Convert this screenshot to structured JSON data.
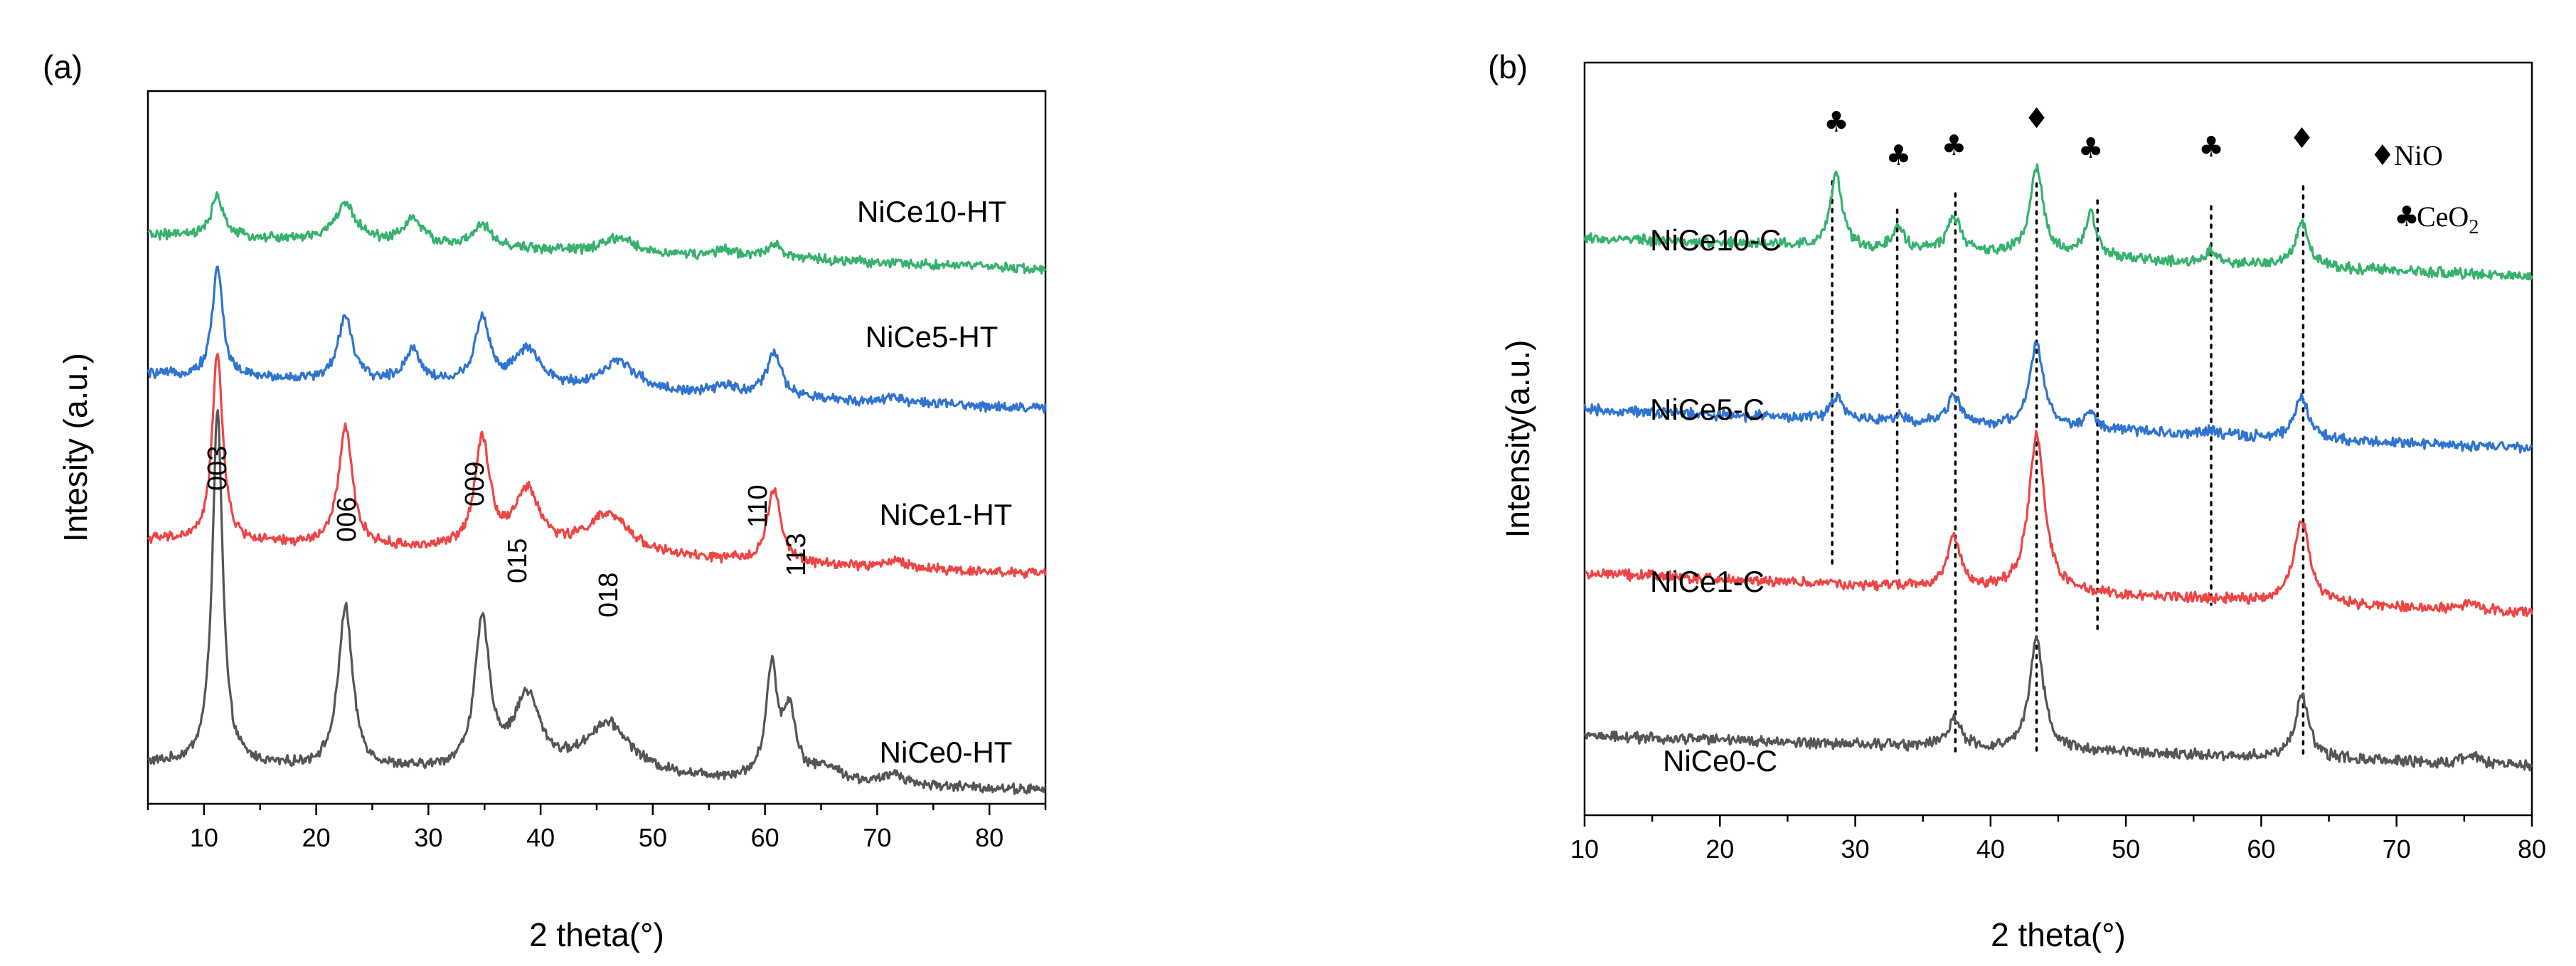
{
  "figure": {
    "panels": [
      {
        "label": "(a)"
      },
      {
        "label": "(b)"
      }
    ]
  },
  "chart_data": [
    {
      "id": "a",
      "type": "line",
      "title": "",
      "xlabel": "2 theta(°)",
      "ylabel": "Intesity (a.u.)",
      "xlim": [
        5,
        85
      ],
      "ylim": [
        0,
        9
      ],
      "xticks": [
        10,
        20,
        30,
        40,
        50,
        60,
        70,
        80
      ],
      "yticks_hidden": true,
      "series": [
        {
          "name": "NiCe0-HT",
          "color": "#555555",
          "baseline": 0.35,
          "peaks": [
            [
              11.2,
              4.8,
              0.55
            ],
            [
              22.6,
              2.2,
              0.75
            ],
            [
              34.8,
              2.0,
              0.8
            ],
            [
              38.8,
              1.0,
              1.4
            ],
            [
              46.0,
              0.7,
              2.5
            ],
            [
              60.6,
              1.5,
              0.6
            ],
            [
              62.2,
              0.9,
              0.7
            ],
            [
              65.5,
              0.2,
              1.5
            ],
            [
              71.6,
              0.15,
              1.0
            ]
          ]
        },
        {
          "name": "NiCe1-HT",
          "color": "#ef4444",
          "baseline": 3.4,
          "peaks": [
            [
              11.2,
              2.6,
              0.55
            ],
            [
              22.6,
              1.6,
              0.75
            ],
            [
              34.8,
              1.5,
              0.8
            ],
            [
              38.8,
              0.8,
              1.4
            ],
            [
              46.0,
              0.55,
              2.5
            ],
            [
              60.8,
              1.0,
              0.7
            ],
            [
              71.6,
              0.1,
              1.0
            ]
          ]
        },
        {
          "name": "NiCe5-HT",
          "color": "#2f74d0",
          "baseline": 5.65,
          "peaks": [
            [
              11.2,
              1.5,
              0.55
            ],
            [
              22.6,
              0.9,
              0.75
            ],
            [
              28.6,
              0.45,
              0.9
            ],
            [
              34.8,
              0.9,
              0.8
            ],
            [
              38.8,
              0.5,
              1.4
            ],
            [
              47.0,
              0.4,
              2.0
            ],
            [
              56.5,
              0.12,
              1.3
            ],
            [
              60.8,
              0.6,
              0.8
            ],
            [
              71.6,
              0.08,
              1.0
            ]
          ]
        },
        {
          "name": "NiCe10-HT",
          "color": "#36b26e",
          "baseline": 7.55,
          "peaks": [
            [
              11.2,
              0.55,
              0.65
            ],
            [
              22.6,
              0.5,
              1.2
            ],
            [
              28.6,
              0.35,
              1.0
            ],
            [
              34.8,
              0.3,
              0.9
            ],
            [
              47.0,
              0.2,
              1.5
            ],
            [
              56.5,
              0.08,
              1.0
            ],
            [
              60.8,
              0.2,
              0.9
            ]
          ]
        }
      ],
      "peak_labels": [
        "003",
        "006",
        "009",
        "015",
        "018",
        "110",
        "113"
      ]
    },
    {
      "id": "b",
      "type": "line",
      "title": "",
      "xlabel": "2 theta(°)",
      "ylabel": "Intensity(a.u.)",
      "xlim": [
        10,
        80
      ],
      "ylim": [
        0,
        9
      ],
      "xticks": [
        10,
        20,
        30,
        40,
        50,
        60,
        70,
        80
      ],
      "yticks_hidden": true,
      "series": [
        {
          "name": "NiCe0-C",
          "color": "#555555",
          "baseline": 0.78,
          "peaks": [
            [
              37.3,
              0.35,
              0.6
            ],
            [
              43.4,
              1.45,
              0.6
            ],
            [
              63.0,
              0.8,
              0.6
            ],
            [
              75.5,
              0.1,
              0.8
            ]
          ]
        },
        {
          "name": "NiCe1-C",
          "color": "#ef4444",
          "baseline": 2.85,
          "peaks": [
            [
              37.3,
              0.65,
              0.6
            ],
            [
              43.4,
              2.0,
              0.7
            ],
            [
              63.0,
              1.05,
              0.7
            ],
            [
              75.5,
              0.1,
              0.8
            ]
          ]
        },
        {
          "name": "NiCe5-C",
          "color": "#2f74d0",
          "baseline": 4.95,
          "peaks": [
            [
              28.6,
              0.3,
              0.5
            ],
            [
              33.2,
              0.08,
              0.5
            ],
            [
              37.3,
              0.35,
              0.6
            ],
            [
              43.4,
              1.1,
              0.6
            ],
            [
              47.4,
              0.2,
              0.5
            ],
            [
              56.3,
              0.06,
              0.5
            ],
            [
              63.0,
              0.55,
              0.6
            ]
          ]
        },
        {
          "name": "NiCe10-C",
          "color": "#36b26e",
          "baseline": 7.15,
          "peaks": [
            [
              28.6,
              0.95,
              0.5
            ],
            [
              33.2,
              0.3,
              0.5
            ],
            [
              37.3,
              0.45,
              0.6
            ],
            [
              43.4,
              1.1,
              0.6
            ],
            [
              47.4,
              0.55,
              0.5
            ],
            [
              56.3,
              0.15,
              0.5
            ],
            [
              63.0,
              0.55,
              0.6
            ]
          ]
        }
      ],
      "reference_lines": [
        28.3,
        33.1,
        37.4,
        43.4,
        47.9,
        56.3,
        63.1
      ],
      "peak_markers": [
        {
          "x": 28.6,
          "symbol": "♣"
        },
        {
          "x": 33.2,
          "symbol": "♣"
        },
        {
          "x": 37.3,
          "symbol": "♣"
        },
        {
          "x": 43.4,
          "symbol": "♦"
        },
        {
          "x": 47.4,
          "symbol": "♣"
        },
        {
          "x": 56.3,
          "symbol": "♣"
        },
        {
          "x": 63.0,
          "symbol": "♦"
        }
      ],
      "legend": [
        {
          "symbol": "♦",
          "text": "NiO"
        },
        {
          "symbol": "♣",
          "text": "CeO",
          "subscript": "2"
        }
      ]
    }
  ]
}
